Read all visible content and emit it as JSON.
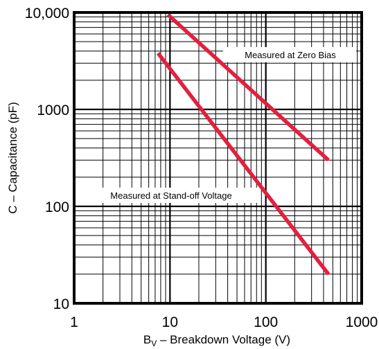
{
  "chart_data": {
    "type": "line",
    "title": "",
    "xlabel": {
      "main": "B",
      "sub": "V",
      "rest": " – Breakdown Voltage (V)"
    },
    "ylabel": "C – Capacitance (pF)",
    "x_scale": "log",
    "y_scale": "log",
    "xlim": [
      1,
      1000
    ],
    "ylim": [
      10,
      10000
    ],
    "x_ticks": [
      {
        "value": 1,
        "label": "1"
      },
      {
        "value": 10,
        "label": "10"
      },
      {
        "value": 100,
        "label": "100"
      },
      {
        "value": 1000,
        "label": "1000"
      }
    ],
    "y_ticks": [
      {
        "value": 10,
        "label": "10"
      },
      {
        "value": 100,
        "label": "100"
      },
      {
        "value": 1000,
        "label": "1000"
      },
      {
        "value": 10000,
        "label": "10,000"
      }
    ],
    "grid": true,
    "line_color": "#e0213f",
    "series": [
      {
        "points": [
          [
            9.5,
            9500
          ],
          [
            450,
            300
          ]
        ],
        "annotation": "Measured at Zero Bias"
      },
      {
        "points": [
          [
            7.5,
            3800
          ],
          [
            450,
            20
          ]
        ],
        "annotation": "Measured at Stand-off Voltage"
      }
    ]
  }
}
